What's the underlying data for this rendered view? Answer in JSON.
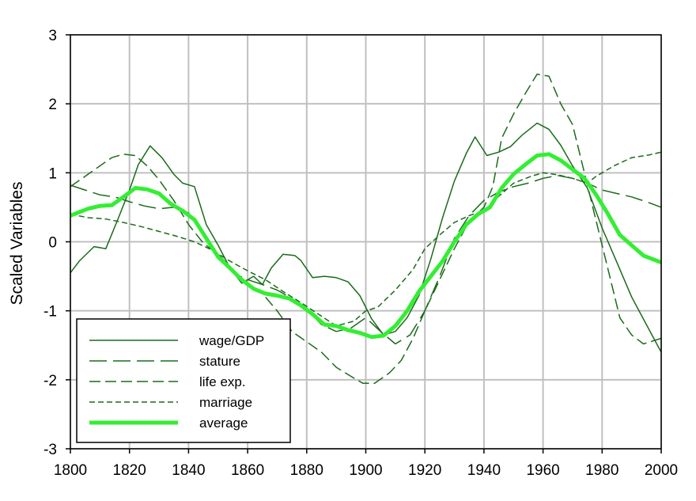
{
  "chart_data": {
    "type": "line",
    "title": "",
    "xlabel": "",
    "ylabel": "Scaled Variables",
    "xlim": [
      1800,
      2000
    ],
    "ylim": [
      -3,
      3
    ],
    "x_ticks": [
      1800,
      1820,
      1840,
      1860,
      1880,
      1900,
      1920,
      1940,
      1960,
      1980,
      2000
    ],
    "y_ticks": [
      3,
      2,
      1,
      0,
      -1,
      -2,
      -3
    ],
    "grid": true,
    "legend_position": "bottom-left",
    "series": [
      {
        "name": "wage/GDP",
        "color": "#1a6b1a",
        "style": "solid",
        "points": [
          [
            1800,
            -0.45
          ],
          [
            1803,
            -0.28
          ],
          [
            1808,
            -0.07
          ],
          [
            1812,
            -0.1
          ],
          [
            1816,
            0.32
          ],
          [
            1820,
            0.75
          ],
          [
            1823,
            1.12
          ],
          [
            1827,
            1.39
          ],
          [
            1831,
            1.22
          ],
          [
            1835,
            0.98
          ],
          [
            1838,
            0.85
          ],
          [
            1842,
            0.8
          ],
          [
            1846,
            0.25
          ],
          [
            1850,
            -0.05
          ],
          [
            1854,
            -0.38
          ],
          [
            1858,
            -0.6
          ],
          [
            1862,
            -0.5
          ],
          [
            1865,
            -0.62
          ],
          [
            1868,
            -0.38
          ],
          [
            1872,
            -0.18
          ],
          [
            1876,
            -0.2
          ],
          [
            1878,
            -0.27
          ],
          [
            1882,
            -0.52
          ],
          [
            1886,
            -0.5
          ],
          [
            1890,
            -0.52
          ],
          [
            1894,
            -0.58
          ],
          [
            1898,
            -0.78
          ],
          [
            1902,
            -1.12
          ],
          [
            1906,
            -1.35
          ],
          [
            1910,
            -1.3
          ],
          [
            1914,
            -1.1
          ],
          [
            1918,
            -0.78
          ],
          [
            1922,
            -0.25
          ],
          [
            1926,
            0.35
          ],
          [
            1930,
            0.88
          ],
          [
            1934,
            1.28
          ],
          [
            1937,
            1.52
          ],
          [
            1941,
            1.25
          ],
          [
            1945,
            1.3
          ],
          [
            1949,
            1.38
          ],
          [
            1953,
            1.55
          ],
          [
            1958,
            1.72
          ],
          [
            1962,
            1.63
          ],
          [
            1966,
            1.4
          ],
          [
            1970,
            1.1
          ],
          [
            1975,
            0.78
          ],
          [
            1980,
            0.2
          ],
          [
            1985,
            -0.3
          ],
          [
            1990,
            -0.8
          ],
          [
            1995,
            -1.2
          ],
          [
            2000,
            -1.6
          ]
        ]
      },
      {
        "name": "stature",
        "color": "#1a6b1a",
        "style": "long-dash",
        "points": [
          [
            1800,
            0.82
          ],
          [
            1805,
            0.75
          ],
          [
            1810,
            0.68
          ],
          [
            1815,
            0.65
          ],
          [
            1820,
            0.58
          ],
          [
            1825,
            0.52
          ],
          [
            1830,
            0.48
          ],
          [
            1835,
            0.5
          ],
          [
            1840,
            0.42
          ],
          [
            1845,
            0.1
          ],
          [
            1850,
            -0.18
          ],
          [
            1855,
            -0.45
          ],
          [
            1860,
            -0.55
          ],
          [
            1865,
            -0.62
          ],
          [
            1870,
            -0.7
          ],
          [
            1875,
            -0.82
          ],
          [
            1880,
            -0.98
          ],
          [
            1885,
            -1.2
          ],
          [
            1890,
            -1.3
          ],
          [
            1895,
            -1.25
          ],
          [
            1900,
            -1.1
          ],
          [
            1905,
            -1.3
          ],
          [
            1910,
            -1.48
          ],
          [
            1915,
            -1.35
          ],
          [
            1920,
            -1.0
          ],
          [
            1925,
            -0.5
          ],
          [
            1930,
            0.05
          ],
          [
            1935,
            0.38
          ],
          [
            1940,
            0.6
          ],
          [
            1945,
            0.72
          ],
          [
            1950,
            0.8
          ],
          [
            1955,
            0.85
          ],
          [
            1960,
            0.92
          ],
          [
            1965,
            0.96
          ],
          [
            1970,
            0.92
          ],
          [
            1975,
            0.85
          ],
          [
            1980,
            0.75
          ],
          [
            1985,
            0.7
          ],
          [
            1990,
            0.65
          ],
          [
            1995,
            0.58
          ],
          [
            2000,
            0.5
          ]
        ]
      },
      {
        "name": "life exp.",
        "color": "#1a6b1a",
        "style": "dash",
        "points": [
          [
            1800,
            0.8
          ],
          [
            1805,
            0.95
          ],
          [
            1810,
            1.1
          ],
          [
            1814,
            1.22
          ],
          [
            1818,
            1.27
          ],
          [
            1822,
            1.25
          ],
          [
            1826,
            1.1
          ],
          [
            1830,
            0.9
          ],
          [
            1835,
            0.6
          ],
          [
            1840,
            0.25
          ],
          [
            1845,
            -0.02
          ],
          [
            1850,
            -0.18
          ],
          [
            1855,
            -0.4
          ],
          [
            1860,
            -0.62
          ],
          [
            1865,
            -0.75
          ],
          [
            1870,
            -1.0
          ],
          [
            1875,
            -1.3
          ],
          [
            1880,
            -1.45
          ],
          [
            1885,
            -1.6
          ],
          [
            1890,
            -1.82
          ],
          [
            1895,
            -1.95
          ],
          [
            1899,
            -2.05
          ],
          [
            1903,
            -2.05
          ],
          [
            1908,
            -1.9
          ],
          [
            1912,
            -1.72
          ],
          [
            1916,
            -1.4
          ],
          [
            1920,
            -1.0
          ],
          [
            1925,
            -0.55
          ],
          [
            1930,
            -0.1
          ],
          [
            1935,
            0.3
          ],
          [
            1940,
            0.5
          ],
          [
            1943,
            0.8
          ],
          [
            1946,
            1.5
          ],
          [
            1950,
            1.85
          ],
          [
            1954,
            2.15
          ],
          [
            1958,
            2.43
          ],
          [
            1962,
            2.4
          ],
          [
            1966,
            2.0
          ],
          [
            1970,
            1.7
          ],
          [
            1974,
            1.0
          ],
          [
            1978,
            0.3
          ],
          [
            1982,
            -0.4
          ],
          [
            1986,
            -1.1
          ],
          [
            1990,
            -1.35
          ],
          [
            1994,
            -1.48
          ],
          [
            2000,
            -1.4
          ]
        ]
      },
      {
        "name": "marriage",
        "color": "#1a6b1a",
        "style": "short-dash",
        "points": [
          [
            1800,
            0.4
          ],
          [
            1806,
            0.35
          ],
          [
            1812,
            0.33
          ],
          [
            1818,
            0.28
          ],
          [
            1824,
            0.22
          ],
          [
            1830,
            0.15
          ],
          [
            1836,
            0.08
          ],
          [
            1842,
            0.0
          ],
          [
            1848,
            -0.12
          ],
          [
            1854,
            -0.28
          ],
          [
            1860,
            -0.42
          ],
          [
            1866,
            -0.55
          ],
          [
            1872,
            -0.72
          ],
          [
            1878,
            -0.88
          ],
          [
            1884,
            -1.05
          ],
          [
            1890,
            -1.22
          ],
          [
            1896,
            -1.15
          ],
          [
            1900,
            -1.0
          ],
          [
            1904,
            -0.95
          ],
          [
            1910,
            -0.7
          ],
          [
            1916,
            -0.4
          ],
          [
            1920,
            -0.1
          ],
          [
            1925,
            0.1
          ],
          [
            1930,
            0.28
          ],
          [
            1935,
            0.38
          ],
          [
            1940,
            0.45
          ],
          [
            1944,
            0.62
          ],
          [
            1950,
            0.85
          ],
          [
            1956,
            0.95
          ],
          [
            1960,
            1.0
          ],
          [
            1965,
            0.97
          ],
          [
            1970,
            0.92
          ],
          [
            1975,
            0.85
          ],
          [
            1978,
            0.95
          ],
          [
            1984,
            1.1
          ],
          [
            1990,
            1.22
          ],
          [
            1996,
            1.26
          ],
          [
            2000,
            1.3
          ]
        ]
      },
      {
        "name": "average",
        "color": "#33ee33",
        "style": "thick",
        "points": [
          [
            1800,
            0.38
          ],
          [
            1806,
            0.48
          ],
          [
            1810,
            0.52
          ],
          [
            1814,
            0.53
          ],
          [
            1818,
            0.65
          ],
          [
            1822,
            0.78
          ],
          [
            1826,
            0.76
          ],
          [
            1830,
            0.7
          ],
          [
            1834,
            0.55
          ],
          [
            1838,
            0.45
          ],
          [
            1842,
            0.32
          ],
          [
            1846,
            0.05
          ],
          [
            1850,
            -0.22
          ],
          [
            1854,
            -0.38
          ],
          [
            1858,
            -0.55
          ],
          [
            1862,
            -0.68
          ],
          [
            1866,
            -0.75
          ],
          [
            1870,
            -0.78
          ],
          [
            1874,
            -0.82
          ],
          [
            1878,
            -0.92
          ],
          [
            1882,
            -1.05
          ],
          [
            1886,
            -1.2
          ],
          [
            1890,
            -1.22
          ],
          [
            1894,
            -1.28
          ],
          [
            1898,
            -1.32
          ],
          [
            1902,
            -1.38
          ],
          [
            1906,
            -1.36
          ],
          [
            1910,
            -1.22
          ],
          [
            1914,
            -1.0
          ],
          [
            1918,
            -0.72
          ],
          [
            1922,
            -0.5
          ],
          [
            1926,
            -0.28
          ],
          [
            1930,
            0.0
          ],
          [
            1934,
            0.25
          ],
          [
            1938,
            0.4
          ],
          [
            1942,
            0.5
          ],
          [
            1946,
            0.78
          ],
          [
            1950,
            0.98
          ],
          [
            1954,
            1.12
          ],
          [
            1958,
            1.25
          ],
          [
            1962,
            1.27
          ],
          [
            1966,
            1.18
          ],
          [
            1970,
            1.05
          ],
          [
            1974,
            0.92
          ],
          [
            1978,
            0.68
          ],
          [
            1982,
            0.4
          ],
          [
            1986,
            0.1
          ],
          [
            1990,
            -0.05
          ],
          [
            1994,
            -0.2
          ],
          [
            2000,
            -0.3
          ]
        ]
      }
    ]
  }
}
